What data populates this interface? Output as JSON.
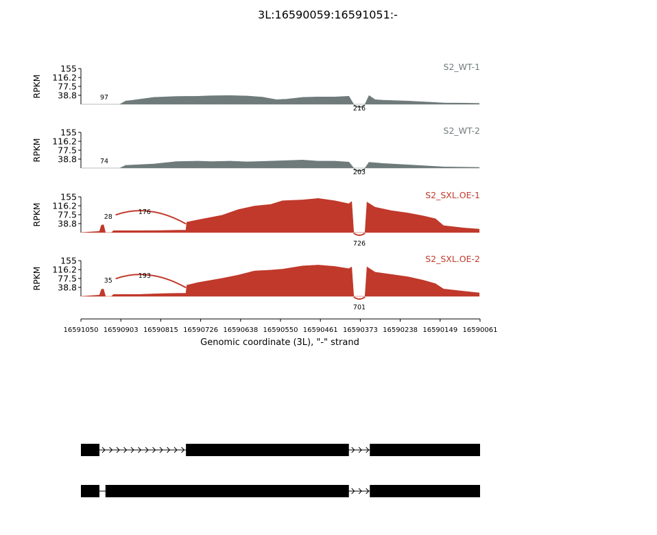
{
  "chart_data": {
    "type": "area",
    "title": "3L:16590059:16591051:-",
    "xlabel": "Genomic coordinate (3L), \"-\" strand",
    "x_reversed": true,
    "xlim": [
      16591051,
      16590059
    ],
    "xticks": [
      "16591050",
      "16590903",
      "16590815",
      "16590726",
      "16590638",
      "16590550",
      "16590461",
      "16590373",
      "16590238",
      "16590149",
      "16590061"
    ],
    "ylabel": "RPKM",
    "ylim": [
      0,
      155
    ],
    "yticks": [
      "38.8",
      "77.5",
      "116.2",
      "155"
    ],
    "series": [
      {
        "name": "S2_WT-1",
        "color": "#6f7b7b",
        "coverage": [
          [
            16591050,
            0.1
          ],
          [
            16591020,
            0.1
          ],
          [
            16590954,
            0.1
          ],
          [
            16590940,
            14
          ],
          [
            16590925,
            17
          ],
          [
            16590870,
            30
          ],
          [
            16590815,
            34
          ],
          [
            16590760,
            35
          ],
          [
            16590726,
            37
          ],
          [
            16590680,
            38
          ],
          [
            16590638,
            36
          ],
          [
            16590600,
            31
          ],
          [
            16590565,
            20
          ],
          [
            16590540,
            22
          ],
          [
            16590500,
            30
          ],
          [
            16590461,
            32
          ],
          [
            16590420,
            32
          ],
          [
            16590385,
            35
          ],
          [
            16590373,
            0
          ],
          [
            16590345,
            0
          ],
          [
            16590335,
            38
          ],
          [
            16590320,
            20
          ],
          [
            16590300,
            18
          ],
          [
            16590238,
            14
          ],
          [
            16590149,
            6
          ],
          [
            16590100,
            5
          ],
          [
            16590061,
            4
          ]
        ],
        "junctions": [
          {
            "label": "97",
            "from": 16591005,
            "to": 16590954
          },
          {
            "label": "216",
            "from": 16590373,
            "to": 16590345
          }
        ]
      },
      {
        "name": "S2_WT-2",
        "color": "#6f7b7b",
        "coverage": [
          [
            16591050,
            0.1
          ],
          [
            16591020,
            0.1
          ],
          [
            16590954,
            0.1
          ],
          [
            16590940,
            12
          ],
          [
            16590870,
            18
          ],
          [
            16590815,
            28
          ],
          [
            16590760,
            30
          ],
          [
            16590726,
            28
          ],
          [
            16590680,
            30
          ],
          [
            16590638,
            27
          ],
          [
            16590600,
            29
          ],
          [
            16590550,
            32
          ],
          [
            16590500,
            35
          ],
          [
            16590461,
            30
          ],
          [
            16590420,
            30
          ],
          [
            16590385,
            26
          ],
          [
            16590373,
            0
          ],
          [
            16590345,
            0
          ],
          [
            16590335,
            25
          ],
          [
            16590300,
            20
          ],
          [
            16590238,
            14
          ],
          [
            16590149,
            5
          ],
          [
            16590100,
            4
          ],
          [
            16590061,
            3
          ]
        ],
        "junctions": [
          {
            "label": "74",
            "from": 16591005,
            "to": 16590954
          },
          {
            "label": "203",
            "from": 16590373,
            "to": 16590345
          }
        ]
      },
      {
        "name": "S2_SXL.OE-1",
        "color": "#c0392b",
        "coverage": [
          [
            16591050,
            0.1
          ],
          [
            16591005,
            5
          ],
          [
            16591000,
            32
          ],
          [
            16590995,
            34
          ],
          [
            16590990,
            0
          ],
          [
            16590975,
            0
          ],
          [
            16590970,
            8
          ],
          [
            16590900,
            8
          ],
          [
            16590850,
            9
          ],
          [
            16590810,
            10
          ],
          [
            16590790,
            10
          ],
          [
            16590788,
            45
          ],
          [
            16590760,
            55
          ],
          [
            16590700,
            75
          ],
          [
            16590660,
            100
          ],
          [
            16590620,
            115
          ],
          [
            16590580,
            122
          ],
          [
            16590550,
            138
          ],
          [
            16590500,
            142
          ],
          [
            16590461,
            148
          ],
          [
            16590420,
            138
          ],
          [
            16590385,
            125
          ],
          [
            16590378,
            135
          ],
          [
            16590373,
            0
          ],
          [
            16590345,
            0
          ],
          [
            16590340,
            132
          ],
          [
            16590320,
            110
          ],
          [
            16590280,
            95
          ],
          [
            16590238,
            85
          ],
          [
            16590200,
            72
          ],
          [
            16590170,
            60
          ],
          [
            16590150,
            30
          ],
          [
            16590100,
            20
          ],
          [
            16590061,
            15
          ]
        ],
        "junctions": [
          {
            "label": "28",
            "from": 16590990,
            "to": 16590975
          },
          {
            "label": "176",
            "from": 16590975,
            "to": 16590790
          },
          {
            "label": "726",
            "from": 16590373,
            "to": 16590345
          }
        ]
      },
      {
        "name": "S2_SXL.OE-2",
        "color": "#c0392b",
        "coverage": [
          [
            16591050,
            0.1
          ],
          [
            16591005,
            5
          ],
          [
            16591000,
            30
          ],
          [
            16590995,
            32
          ],
          [
            16590990,
            0
          ],
          [
            16590975,
            0
          ],
          [
            16590970,
            8
          ],
          [
            16590900,
            9
          ],
          [
            16590850,
            12
          ],
          [
            16590810,
            13
          ],
          [
            16590790,
            13
          ],
          [
            16590788,
            48
          ],
          [
            16590760,
            60
          ],
          [
            16590700,
            78
          ],
          [
            16590660,
            92
          ],
          [
            16590620,
            110
          ],
          [
            16590580,
            114
          ],
          [
            16590550,
            118
          ],
          [
            16590500,
            132
          ],
          [
            16590461,
            136
          ],
          [
            16590420,
            130
          ],
          [
            16590385,
            120
          ],
          [
            16590378,
            128
          ],
          [
            16590373,
            0
          ],
          [
            16590345,
            0
          ],
          [
            16590340,
            128
          ],
          [
            16590320,
            105
          ],
          [
            16590280,
            95
          ],
          [
            16590238,
            85
          ],
          [
            16590200,
            70
          ],
          [
            16590170,
            55
          ],
          [
            16590150,
            32
          ],
          [
            16590100,
            22
          ],
          [
            16590061,
            15
          ]
        ],
        "junctions": [
          {
            "label": "35",
            "from": 16590990,
            "to": 16590975
          },
          {
            "label": "193",
            "from": 16590975,
            "to": 16590790
          },
          {
            "label": "701",
            "from": 16590373,
            "to": 16590345
          }
        ]
      }
    ],
    "transcripts": [
      {
        "exons": [
          [
            16591051,
            16591005
          ],
          [
            16590790,
            16590385
          ],
          [
            16590333,
            16590059
          ]
        ],
        "intron_arrows": true
      },
      {
        "exons": [
          [
            16591051,
            16591005
          ],
          [
            16590990,
            16590385
          ],
          [
            16590333,
            16590059
          ]
        ],
        "intron_arrows": true
      }
    ]
  }
}
